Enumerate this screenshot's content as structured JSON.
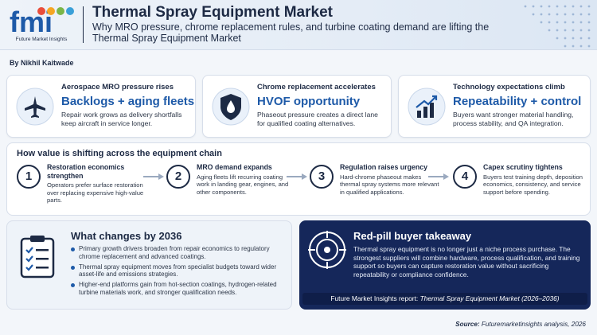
{
  "brand": {
    "logo_text": "fmi",
    "tagline": "Future Market Insights"
  },
  "header": {
    "title": "Thermal Spray Equipment Market",
    "subtitle": "Why MRO pressure, chrome replacement rules, and turbine coating demand are lifting the Thermal Spray Equipment Market"
  },
  "author": "By Nikhil Kaitwade",
  "top_cards": [
    {
      "icon": "airplane-icon",
      "label": "Aerospace MRO pressure rises",
      "headline": "Backlogs + aging fleets",
      "body": "Repair work grows as delivery shortfalls keep aircraft in service longer."
    },
    {
      "icon": "shield-drop-icon",
      "label": "Chrome replacement accelerates",
      "headline": "HVOF opportunity",
      "body": "Phaseout pressure creates a direct lane for qualified coating alternatives."
    },
    {
      "icon": "growth-chart-icon",
      "label": "Technology expectations climb",
      "headline": "Repeatability + control",
      "body": "Buyers want stronger material handling, process stability, and QA integration."
    }
  ],
  "chain": {
    "title": "How value is shifting across the equipment chain",
    "steps": [
      {
        "num": "1",
        "title": "Restoration economics strengthen",
        "body": "Operators prefer surface restoration over replacing expensive high-value parts."
      },
      {
        "num": "2",
        "title": "MRO demand expands",
        "body": "Aging fleets lift recurring coating work in landing gear, engines, and other components."
      },
      {
        "num": "3",
        "title": "Regulation raises urgency",
        "body": "Hard-chrome phaseout makes thermal spray systems more relevant in qualified applications."
      },
      {
        "num": "4",
        "title": "Capex scrutiny tightens",
        "body": "Buyers test training depth, deposition economics, consistency, and service support before spending."
      }
    ]
  },
  "changes": {
    "title": "What changes by 2036",
    "items": [
      "Primary growth drivers broaden from repair economics to regulatory chrome replacement and advanced coatings.",
      "Thermal spray equipment moves from specialist budgets toward wider asset-life and emissions strategies.",
      "Higher-end platforms gain from hot-section coatings, hydrogen-related turbine materials work, and stronger qualification needs."
    ]
  },
  "redpill": {
    "title": "Red-pill buyer takeaway",
    "body": "Thermal spray equipment is no longer just a niche process purchase. The strongest suppliers will combine hardware, process qualification, and training support so buyers can capture restoration value without sacrificing repeatability or compliance confidence.",
    "footer_prefix": "Future Market Insights report: ",
    "footer_report": "Thermal Spray Equipment Market (2026–2036)"
  },
  "source": {
    "label": "Source:",
    "text": "Futuremarketinsights analysis, 2026"
  },
  "colors": {
    "navy": "#1d2a44",
    "accent_blue": "#1e5aa8",
    "dark_panel": "#15275a",
    "logo_dot_colors": [
      "#e94e3c",
      "#f5a623",
      "#7ab648",
      "#3aa0d8",
      "#9b59b6"
    ]
  }
}
